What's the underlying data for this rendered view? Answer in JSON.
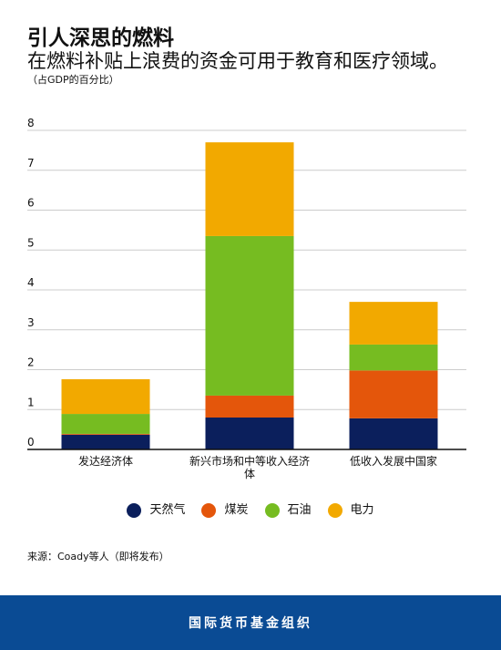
{
  "header": {
    "title": "引人深思的燃料",
    "subtitle": "在燃料补贴上浪费的资金可用于教育和医疗领域。",
    "unit_note": "（占GDP的百分比）"
  },
  "colors": {
    "natural_gas": "#0b1f5c",
    "coal": "#e4560b",
    "oil": "#76bc21",
    "electricity": "#f2a900",
    "footer": "#0a4b94"
  },
  "chart_data": {
    "type": "bar",
    "stacked": true,
    "categories": [
      [
        "发达经济体"
      ],
      [
        "新兴市场和中等收入经济",
        "体"
      ],
      [
        "低收入发展中国家"
      ]
    ],
    "series": [
      {
        "name": "天然气",
        "color": "#0b1f5c",
        "values": [
          0.37,
          0.8,
          0.78
        ]
      },
      {
        "name": "煤炭",
        "color": "#e4560b",
        "values": [
          0.02,
          0.55,
          1.2
        ]
      },
      {
        "name": "石油",
        "color": "#76bc21",
        "values": [
          0.5,
          4.0,
          0.65
        ]
      },
      {
        "name": "电力",
        "color": "#f2a900",
        "values": [
          0.87,
          2.35,
          1.07
        ]
      }
    ],
    "y_ticks": [
      0,
      1,
      2,
      3,
      4,
      5,
      6,
      7,
      8
    ],
    "ylim": [
      0,
      8
    ],
    "grid": true,
    "legend_position": "bottom"
  },
  "legend": [
    {
      "label": "天然气",
      "color": "#0b1f5c"
    },
    {
      "label": "煤炭",
      "color": "#e4560b"
    },
    {
      "label": "石油",
      "color": "#76bc21"
    },
    {
      "label": "电力",
      "color": "#f2a900"
    }
  ],
  "source": "来源：Coady等人（即将发布）",
  "footer": {
    "org": "国际货币基金组织"
  }
}
